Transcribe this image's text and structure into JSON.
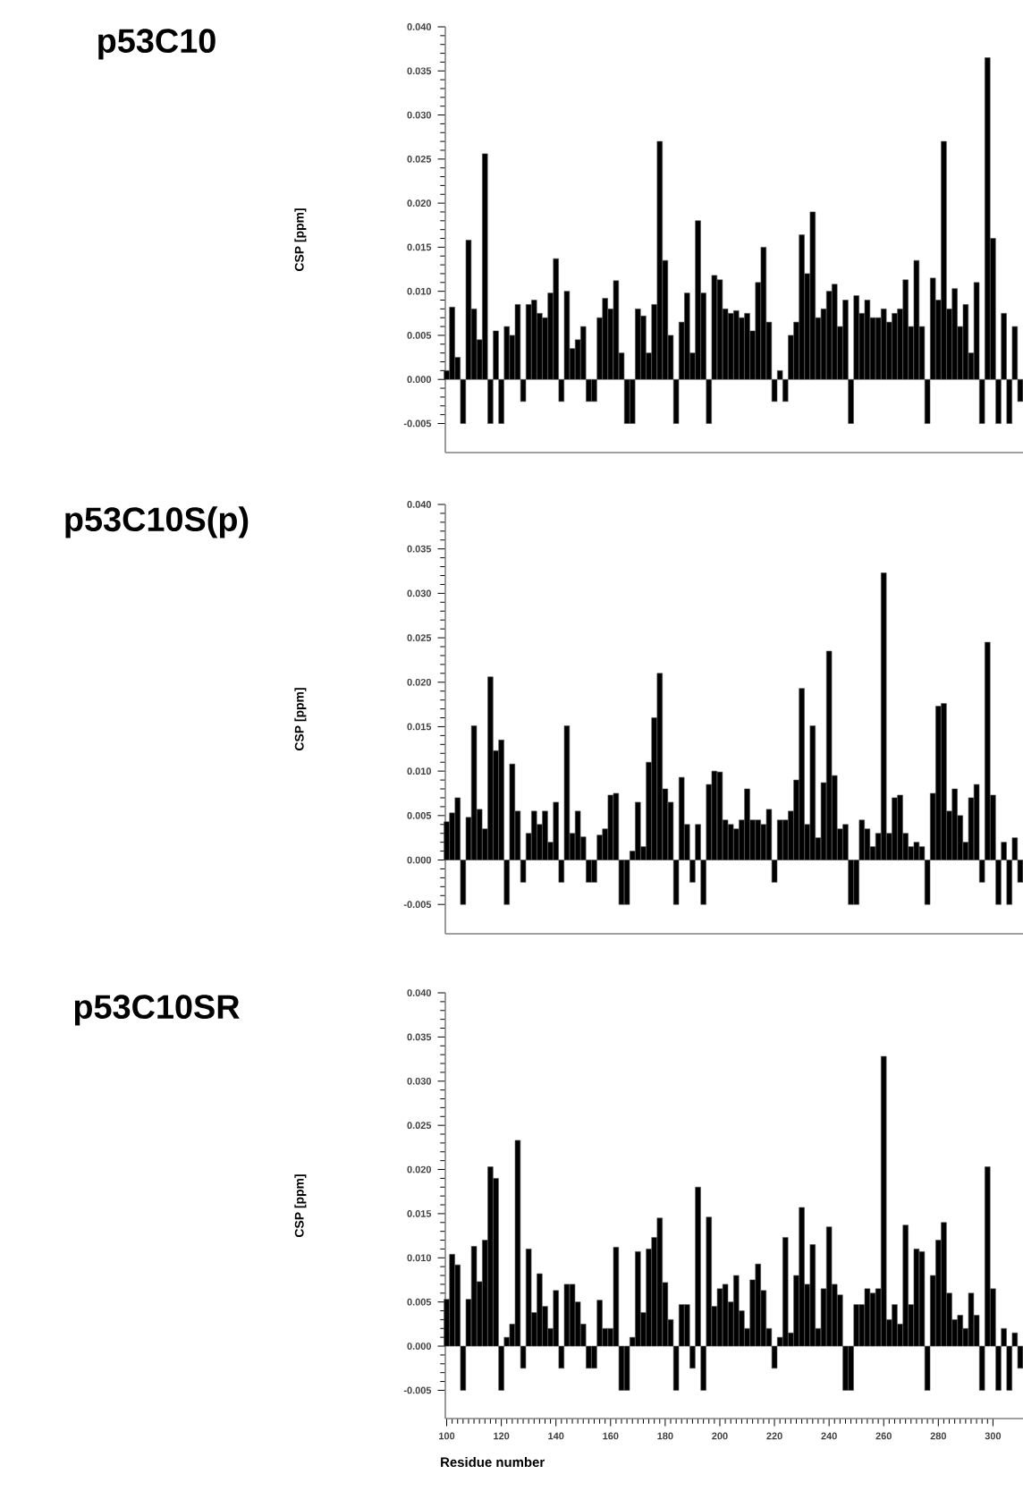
{
  "chart_data": [
    {
      "type": "bar",
      "title": "p53C10",
      "ylabel": "CSP [ppm]",
      "tick_labels": "y",
      "color": "#000000",
      "xlim": [
        99.5,
        311
      ],
      "ylim": [
        -0.0083,
        0.04
      ],
      "yticks": [
        {
          "value": -0.005,
          "label": "-0.005"
        },
        {
          "value": 0,
          "label": "0.000"
        },
        {
          "value": 0.005,
          "label": "0.005"
        },
        {
          "value": 0.01,
          "label": "0.010"
        },
        {
          "value": 0.015,
          "label": "0.015"
        },
        {
          "value": 0.02,
          "label": "0.020"
        },
        {
          "value": 0.025,
          "label": "0.025"
        },
        {
          "value": 0.03,
          "label": "0.030"
        },
        {
          "value": 0.035,
          "label": "0.035"
        },
        {
          "value": 0.04,
          "label": "0.040"
        }
      ],
      "x": [
        100,
        102,
        104,
        106,
        108,
        110,
        112,
        114,
        116,
        118,
        120,
        122,
        124,
        126,
        128,
        130,
        132,
        134,
        136,
        138,
        140,
        142,
        144,
        146,
        148,
        150,
        152,
        154,
        156,
        158,
        160,
        162,
        164,
        166,
        168,
        170,
        172,
        174,
        176,
        178,
        180,
        182,
        184,
        186,
        188,
        190,
        192,
        194,
        196,
        198,
        200,
        202,
        204,
        206,
        208,
        210,
        212,
        214,
        216,
        218,
        220,
        222,
        224,
        226,
        228,
        230,
        232,
        234,
        236,
        238,
        240,
        242,
        244,
        246,
        248,
        250,
        252,
        254,
        256,
        258,
        260,
        262,
        264,
        266,
        268,
        270,
        272,
        274,
        276,
        278,
        280,
        282,
        284,
        286,
        288,
        290,
        292,
        294,
        296,
        298,
        300,
        302,
        304,
        306,
        308,
        310
      ],
      "values": [
        0.001,
        0.0082,
        0.0025,
        -0.005,
        0.0158,
        0.008,
        0.0045,
        0.0256,
        -0.005,
        0.0055,
        -0.005,
        0.006,
        0.005,
        0.0085,
        -0.0025,
        0.0085,
        0.009,
        0.0075,
        0.007,
        0.0098,
        0.0137,
        -0.0025,
        0.01,
        0.0035,
        0.0045,
        0.006,
        -0.0025,
        -0.0025,
        0.007,
        0.0092,
        0.008,
        0.0112,
        0.003,
        -0.005,
        -0.005,
        0.008,
        0.0072,
        0.003,
        0.0085,
        0.027,
        0.0135,
        0.005,
        -0.005,
        0.0065,
        0.0098,
        0.003,
        0.018,
        0.0098,
        -0.005,
        0.0118,
        0.0113,
        0.008,
        0.0075,
        0.0078,
        0.007,
        0.0075,
        0.0055,
        0.011,
        0.015,
        0.0065,
        -0.0025,
        0.001,
        -0.0025,
        0.005,
        0.0065,
        0.0164,
        0.012,
        0.019,
        0.007,
        0.008,
        0.01,
        0.0108,
        0.006,
        0.009,
        -0.005,
        0.0095,
        0.0075,
        0.009,
        0.007,
        0.007,
        0.008,
        0.0065,
        0.0075,
        0.008,
        0.0113,
        0.006,
        0.0135,
        0.006,
        -0.005,
        0.0115,
        0.009,
        0.027,
        0.008,
        0.0103,
        0.006,
        0.0085,
        0.003,
        0.011,
        -0.005,
        0.0365,
        0.016,
        -0.005,
        0.0075,
        -0.005,
        0.006,
        -0.0025
      ]
    },
    {
      "type": "bar",
      "title": "p53C10S(p)",
      "ylabel": "CSP [ppm]",
      "tick_labels": "y",
      "color": "#000000",
      "xlim": [
        99.5,
        311
      ],
      "ylim": [
        -0.0083,
        0.04
      ],
      "yticks": [
        {
          "value": -0.005,
          "label": "-0.005"
        },
        {
          "value": 0,
          "label": "0.000"
        },
        {
          "value": 0.005,
          "label": "0.005"
        },
        {
          "value": 0.01,
          "label": "0.010"
        },
        {
          "value": 0.015,
          "label": "0.015"
        },
        {
          "value": 0.02,
          "label": "0.020"
        },
        {
          "value": 0.025,
          "label": "0.025"
        },
        {
          "value": 0.03,
          "label": "0.030"
        },
        {
          "value": 0.035,
          "label": "0.035"
        },
        {
          "value": 0.04,
          "label": "0.040"
        }
      ],
      "x": [
        100,
        102,
        104,
        106,
        108,
        110,
        112,
        114,
        116,
        118,
        120,
        122,
        124,
        126,
        128,
        130,
        132,
        134,
        136,
        138,
        140,
        142,
        144,
        146,
        148,
        150,
        152,
        154,
        156,
        158,
        160,
        162,
        164,
        166,
        168,
        170,
        172,
        174,
        176,
        178,
        180,
        182,
        184,
        186,
        188,
        190,
        192,
        194,
        196,
        198,
        200,
        202,
        204,
        206,
        208,
        210,
        212,
        214,
        216,
        218,
        220,
        222,
        224,
        226,
        228,
        230,
        232,
        234,
        236,
        238,
        240,
        242,
        244,
        246,
        248,
        250,
        252,
        254,
        256,
        258,
        260,
        262,
        264,
        266,
        268,
        270,
        272,
        274,
        276,
        278,
        280,
        282,
        284,
        286,
        288,
        290,
        292,
        294,
        296,
        298,
        300,
        302,
        304,
        306,
        308,
        310
      ],
      "values": [
        0.0043,
        0.0053,
        0.007,
        -0.005,
        0.0048,
        0.0151,
        0.0057,
        0.0035,
        0.0206,
        0.0123,
        0.0135,
        -0.005,
        0.0108,
        0.0055,
        -0.0025,
        0.003,
        0.0055,
        0.004,
        0.0055,
        0.002,
        0.0065,
        -0.0025,
        0.0151,
        0.003,
        0.0055,
        0.0026,
        -0.0025,
        -0.0025,
        0.0028,
        0.0035,
        0.0073,
        0.0075,
        -0.005,
        -0.005,
        0.001,
        0.0065,
        0.0015,
        0.011,
        0.016,
        0.021,
        0.008,
        0.0065,
        -0.005,
        0.0093,
        0.004,
        -0.0025,
        0.004,
        -0.005,
        0.0085,
        0.01,
        0.0099,
        0.0045,
        0.004,
        0.0035,
        0.0045,
        0.008,
        0.0045,
        0.0045,
        0.004,
        0.0057,
        -0.0025,
        0.0045,
        0.0045,
        0.0055,
        0.009,
        0.0193,
        0.004,
        0.0151,
        0.0025,
        0.0087,
        0.0235,
        0.0095,
        0.0035,
        0.004,
        -0.005,
        -0.005,
        0.0045,
        0.0035,
        0.0015,
        0.003,
        0.0323,
        0.003,
        0.007,
        0.0073,
        0.003,
        0.0015,
        0.002,
        0.0015,
        -0.005,
        0.0075,
        0.0173,
        0.0176,
        0.0055,
        0.008,
        0.005,
        0.002,
        0.007,
        0.0085,
        -0.0025,
        0.0245,
        0.0073,
        -0.005,
        0.002,
        -0.005,
        0.0025,
        -0.0025
      ]
    },
    {
      "type": "bar",
      "title": "p53C10SR",
      "ylabel": "CSP [ppm]",
      "xlabel": "Residue number",
      "color": "#000000",
      "xlim": [
        99.5,
        311
      ],
      "ylim": [
        -0.0082,
        0.04
      ],
      "xticks": [
        100,
        120,
        140,
        160,
        180,
        200,
        220,
        240,
        260,
        280,
        300
      ],
      "yticks": [
        {
          "value": -0.005,
          "label": "-0.005"
        },
        {
          "value": 0,
          "label": "0.000"
        },
        {
          "value": 0.005,
          "label": "0.005"
        },
        {
          "value": 0.01,
          "label": "0.010"
        },
        {
          "value": 0.015,
          "label": "0.015"
        },
        {
          "value": 0.02,
          "label": "0.020"
        },
        {
          "value": 0.025,
          "label": "0.025"
        },
        {
          "value": 0.03,
          "label": "0.030"
        },
        {
          "value": 0.035,
          "label": "0.035"
        },
        {
          "value": 0.04,
          "label": "0.040"
        }
      ],
      "x": [
        100,
        102,
        104,
        106,
        108,
        110,
        112,
        114,
        116,
        118,
        120,
        122,
        124,
        126,
        128,
        130,
        132,
        134,
        136,
        138,
        140,
        142,
        144,
        146,
        148,
        150,
        152,
        154,
        156,
        158,
        160,
        162,
        164,
        166,
        168,
        170,
        172,
        174,
        176,
        178,
        180,
        182,
        184,
        186,
        188,
        190,
        192,
        194,
        196,
        198,
        200,
        202,
        204,
        206,
        208,
        210,
        212,
        214,
        216,
        218,
        220,
        222,
        224,
        226,
        228,
        230,
        232,
        234,
        236,
        238,
        240,
        242,
        244,
        246,
        248,
        250,
        252,
        254,
        256,
        258,
        260,
        262,
        264,
        266,
        268,
        270,
        272,
        274,
        276,
        278,
        280,
        282,
        284,
        286,
        288,
        290,
        292,
        294,
        296,
        298,
        300,
        302,
        304,
        306,
        308,
        310
      ],
      "values": [
        0.0053,
        0.0104,
        0.0092,
        -0.005,
        0.0053,
        0.0113,
        0.0073,
        0.012,
        0.0203,
        0.019,
        -0.005,
        0.001,
        0.0025,
        0.0233,
        -0.0025,
        0.011,
        0.0038,
        0.0082,
        0.0045,
        0.002,
        0.0063,
        -0.0025,
        0.007,
        0.007,
        0.005,
        0.0025,
        -0.0025,
        -0.0025,
        0.0052,
        0.002,
        0.002,
        0.0112,
        -0.005,
        -0.005,
        0.001,
        0.0107,
        0.0038,
        0.011,
        0.0123,
        0.0145,
        0.0072,
        0.003,
        -0.005,
        0.0047,
        0.0047,
        -0.0025,
        0.018,
        -0.005,
        0.0146,
        0.0045,
        0.0065,
        0.007,
        0.005,
        0.008,
        0.004,
        0.002,
        0.0075,
        0.0093,
        0.0063,
        0.002,
        -0.0025,
        0.001,
        0.0123,
        0.0015,
        0.008,
        0.0157,
        0.007,
        0.0115,
        0.002,
        0.0065,
        0.0135,
        0.007,
        0.0058,
        -0.005,
        -0.005,
        0.0047,
        0.0047,
        0.0065,
        0.006,
        0.0065,
        0.0328,
        0.003,
        0.0047,
        0.0025,
        0.0137,
        0.0047,
        0.011,
        0.0107,
        -0.005,
        0.008,
        0.012,
        0.014,
        0.006,
        0.003,
        0.0035,
        0.002,
        0.006,
        0.0035,
        -0.005,
        0.0203,
        0.0065,
        -0.005,
        0.002,
        -0.005,
        0.0015,
        -0.0025
      ]
    }
  ]
}
